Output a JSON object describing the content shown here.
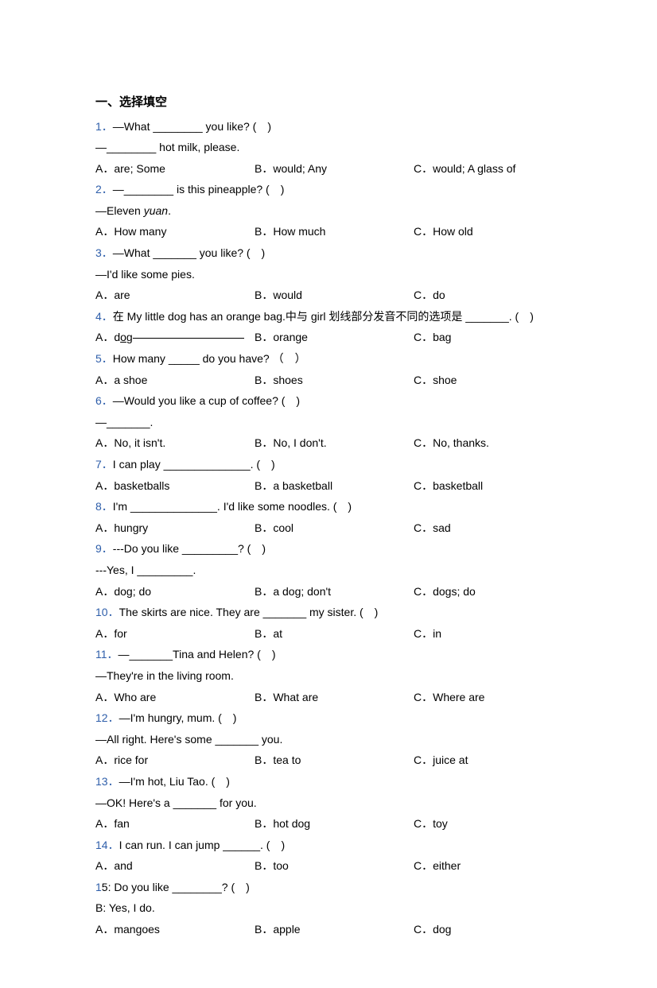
{
  "section_title": "一、选择填空",
  "colors": {
    "question_number": "#2e5eaa",
    "text": "#000000",
    "background": "#ffffff"
  },
  "questions": [
    {
      "num": "1．",
      "lines": [
        "—What ________ you like? (　)",
        "—________ hot milk, please."
      ],
      "opts": [
        "A．are; Some",
        "B．would; Any",
        "C．would; A glass of"
      ]
    },
    {
      "num": "2．",
      "lines": [
        "—________ is this pineapple? (　)"
      ],
      "extra": "—Eleven yuan.",
      "opts": [
        "A．How many",
        "B．How much",
        "C．How old"
      ]
    },
    {
      "num": "3．",
      "lines": [
        "—What _______ you like? (　)",
        "—I'd like some pies."
      ],
      "opts": [
        "A．are",
        "B．would",
        "C．do"
      ]
    },
    {
      "num": "4．",
      "lines": [
        "在 My little dog has an orange bag.中与 girl 划线部分发音不同的选项是 _______. (　)"
      ],
      "opts": [
        "A．dog",
        "B．orange",
        "C．bag"
      ],
      "opts_underline_a": true
    },
    {
      "num": "5．",
      "lines": [
        "How many _____ do you have? （　）"
      ],
      "opts": [
        "A．a shoe",
        "B．shoes",
        "C．shoe"
      ]
    },
    {
      "num": "6．",
      "lines": [
        "—Would you like a cup of coffee? (　)",
        "—_______."
      ],
      "opts": [
        "A．No, it isn't.",
        "B．No, I don't.",
        "C．No, thanks."
      ]
    },
    {
      "num": "7．",
      "lines": [
        "I can play ______________. (　)"
      ],
      "opts": [
        "A．basketballs",
        "B．a basketball",
        "C．basketball"
      ]
    },
    {
      "num": "8．",
      "lines": [
        "I'm ______________. I'd like some noodles. (　)"
      ],
      "opts": [
        "A．hungry",
        "B．cool",
        "C．sad"
      ]
    },
    {
      "num": "9．",
      "lines": [
        "---Do you like _________? (　)",
        "---Yes, I _________."
      ],
      "opts": [
        "A．dog; do",
        "B．a dog; don't",
        "C．dogs; do"
      ]
    },
    {
      "num": "10．",
      "lines": [
        "The skirts are nice. They are _______ my sister. (　)"
      ],
      "opts": [
        "A．for",
        "B．at",
        "C．in"
      ]
    },
    {
      "num": "11．",
      "lines": [
        "—_______Tina and Helen? (　)",
        "—They're in the living room."
      ],
      "opts": [
        "A．Who are",
        "B．What are",
        "C．Where are"
      ]
    },
    {
      "num": "12．",
      "lines": [
        "—I'm hungry, mum. (　)",
        "—All right. Here's some _______ you."
      ],
      "opts": [
        "A．rice for",
        "B．tea to",
        "C．juice at"
      ]
    },
    {
      "num": "13．",
      "lines": [
        "—I'm hot, Liu Tao. (　)",
        "—OK! Here's a _______ for you."
      ],
      "opts": [
        "A．fan",
        "B．hot dog",
        "C．toy"
      ]
    },
    {
      "num": "14．",
      "lines": [
        "I can run. I can jump ______. (　)"
      ],
      "opts": [
        "A．and",
        "B．too",
        "C．either"
      ]
    },
    {
      "num": "1",
      "lines": [
        ": Do you like ________? (　)",
        "B: Yes, I do."
      ],
      "label_inline": "5",
      "opts": [
        "A．mangoes",
        "B．apple",
        "C．dog"
      ]
    }
  ]
}
